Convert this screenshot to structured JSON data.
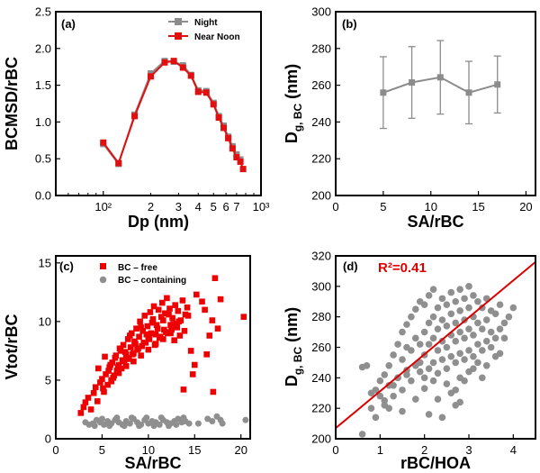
{
  "colors": {
    "night": "#8c8c8c",
    "near_noon": "#e01010",
    "bc_free": "#ee0000",
    "bc_containing": "#8f8f8f",
    "fit_line": "#dd0000",
    "annotation": "#e00000"
  },
  "chart_data": [
    {
      "id": "a",
      "type": "line",
      "panel_label": "(a)",
      "xlabel": "Dp (nm)",
      "ylabel": "BCMSD/rBC",
      "xscale": "log",
      "xlim": [
        50,
        1000
      ],
      "ylim": [
        0,
        2.5
      ],
      "xtick_values": [
        100,
        1000
      ],
      "xtick_labels": [
        "10²",
        "10³"
      ],
      "xtick_minor_labels": [
        {
          "v": 200,
          "t": "2"
        },
        {
          "v": 300,
          "t": "3"
        },
        {
          "v": 400,
          "t": "4"
        },
        {
          "v": 500,
          "t": "5"
        },
        {
          "v": 600,
          "t": "6"
        },
        {
          "v": 700,
          "t": "7"
        }
      ],
      "ytick_values": [
        0,
        0.5,
        1.0,
        1.5,
        2.0,
        2.5
      ],
      "ytick_labels": [
        "0.0",
        "0.5",
        "1.0",
        "1.5",
        "2.0",
        "2.5"
      ],
      "legend": {
        "position": "top-right",
        "entries": [
          "Night",
          "Near Noon"
        ]
      },
      "series": [
        {
          "name": "Night",
          "x": [
            100,
            125,
            158,
            200,
            245,
            280,
            320,
            360,
            400,
            450,
            500,
            540,
            580,
            620,
            660,
            700,
            740
          ],
          "y": [
            0.7,
            0.43,
            1.1,
            1.66,
            1.83,
            1.82,
            1.77,
            1.64,
            1.43,
            1.42,
            1.26,
            1.08,
            0.95,
            0.8,
            0.67,
            0.56,
            0.49
          ]
        },
        {
          "name": "Near Noon",
          "x": [
            100,
            125,
            158,
            200,
            245,
            280,
            320,
            360,
            400,
            450,
            500,
            540,
            580,
            620,
            660,
            700,
            740,
            770
          ],
          "y": [
            0.72,
            0.44,
            1.08,
            1.62,
            1.81,
            1.83,
            1.74,
            1.63,
            1.41,
            1.4,
            1.24,
            1.06,
            0.92,
            0.78,
            0.64,
            0.52,
            0.46,
            0.36
          ]
        }
      ]
    },
    {
      "id": "b",
      "type": "line",
      "panel_label": "(b)",
      "xlabel": "SA/rBC",
      "ylabel": "D",
      "ylabel_sub": "g, BC",
      "ylabel_suffix": " (nm)",
      "xlim": [
        0,
        21
      ],
      "ylim": [
        200,
        300
      ],
      "xtick_values": [
        0,
        5,
        10,
        15,
        20
      ],
      "xtick_labels": [
        "0",
        "5",
        "10",
        "15",
        "20"
      ],
      "ytick_values": [
        200,
        220,
        240,
        260,
        280,
        300
      ],
      "ytick_labels": [
        "200",
        "220",
        "240",
        "260",
        "280",
        "300"
      ],
      "series": [
        {
          "x": [
            5,
            8,
            11,
            14,
            17
          ],
          "y": [
            256,
            261.5,
            264.3,
            256,
            260.4
          ],
          "yerr": [
            19.5,
            19.5,
            20,
            17,
            15.5
          ]
        }
      ]
    },
    {
      "id": "c",
      "type": "scatter",
      "panel_label": "(c)",
      "xlabel": "SA/rBC",
      "ylabel": "Vtot/rBC",
      "xlim": [
        0,
        21
      ],
      "ylim": [
        0,
        15.6
      ],
      "xtick_values": [
        0,
        5,
        10,
        15,
        20
      ],
      "xtick_labels": [
        "0",
        "5",
        "10",
        "15",
        "20"
      ],
      "ytick_values": [
        0,
        5,
        10,
        15
      ],
      "ytick_labels": [
        "0",
        "5",
        "10",
        "15"
      ],
      "legend": {
        "position": "top-left",
        "entries": [
          "BC – free",
          "BC – containing"
        ]
      },
      "series": [
        {
          "name": "BC – free",
          "x": [
            2.7,
            3.0,
            3.2,
            3.5,
            3.8,
            4.1,
            4.3,
            4.5,
            4.8,
            5.0,
            5.2,
            5.4,
            5.6,
            5.8,
            6.0,
            6.1,
            6.3,
            6.5,
            6.6,
            6.8,
            7.0,
            7.1,
            7.3,
            7.4,
            7.6,
            7.8,
            7.9,
            8.1,
            8.2,
            8.4,
            8.5,
            8.7,
            8.8,
            9.0,
            9.1,
            9.3,
            9.4,
            9.6,
            9.7,
            9.9,
            10.0,
            10.2,
            10.3,
            10.5,
            10.6,
            10.8,
            10.9,
            11.1,
            11.2,
            11.4,
            11.5,
            11.7,
            11.8,
            12.0,
            12.1,
            12.3,
            12.4,
            12.6,
            12.8,
            12.9,
            13.1,
            13.2,
            13.4,
            13.5,
            13.7,
            13.9,
            14.0,
            14.2,
            4.6,
            5.3,
            5.9,
            6.4,
            6.9,
            7.5,
            8.0,
            8.6,
            9.2,
            9.8,
            10.4,
            11.0,
            11.6,
            12.2,
            12.7,
            13.3,
            5.1,
            5.7,
            6.2,
            6.7,
            7.2,
            7.7,
            8.3,
            8.9,
            9.5,
            10.1,
            10.7,
            11.3,
            11.9,
            12.5,
            6.0,
            6.8,
            7.6,
            8.4,
            9.2,
            10.0,
            10.8,
            11.6,
            12.4,
            13.0,
            14.3,
            14.6,
            15.2,
            15.8,
            16.1,
            16.6,
            16.9,
            17.2,
            17.5,
            17.8,
            20.3,
            15.0,
            16.3,
            17.0,
            13.8,
            14.8
          ],
          "y": [
            2.2,
            2.7,
            3.1,
            3.5,
            2.5,
            3.9,
            4.4,
            3.2,
            4.8,
            5.1,
            4.0,
            5.5,
            4.6,
            6.1,
            5.0,
            6.5,
            5.4,
            7.1,
            5.8,
            6.3,
            7.5,
            6.0,
            8.0,
            6.6,
            7.2,
            8.5,
            6.8,
            7.8,
            9.0,
            7.3,
            8.3,
            9.4,
            7.6,
            8.7,
            10.0,
            7.9,
            9.2,
            10.5,
            8.2,
            9.6,
            8.6,
            10.8,
            9.0,
            10.2,
            11.3,
            8.9,
            9.7,
            11.0,
            8.6,
            10.4,
            11.6,
            9.3,
            10.7,
            12.0,
            9.0,
            11.1,
            9.7,
            10.3,
            8.4,
            11.4,
            9.5,
            10.9,
            8.8,
            10.1,
            11.8,
            9.2,
            10.6,
            11.2,
            6.0,
            7.0,
            6.3,
            6.9,
            7.7,
            7.4,
            8.8,
            8.1,
            9.5,
            8.9,
            9.9,
            9.4,
            10.1,
            10.6,
            9.8,
            10.0,
            4.3,
            5.8,
            5.2,
            6.1,
            6.7,
            6.9,
            7.2,
            7.7,
            8.2,
            8.5,
            8.0,
            8.7,
            9.1,
            9.3,
            4.9,
            5.6,
            6.2,
            6.6,
            7.1,
            7.6,
            8.1,
            8.5,
            9.0,
            9.8,
            10.5,
            7.5,
            12.3,
            11.7,
            11.0,
            8.8,
            10.1,
            13.7,
            9.4,
            11.9,
            10.4,
            6.3,
            7.2,
            4.0,
            4.2,
            5.5
          ]
        },
        {
          "name": "BC – containing",
          "x": [
            3.2,
            3.6,
            4.0,
            4.4,
            4.8,
            5.2,
            5.6,
            6.0,
            6.4,
            6.8,
            7.2,
            7.6,
            8.0,
            8.4,
            8.8,
            9.2,
            9.6,
            10.0,
            10.4,
            10.8,
            11.2,
            11.6,
            12.0,
            12.4,
            12.8,
            13.2,
            13.6,
            14.0,
            14.4,
            4.2,
            5.0,
            5.8,
            6.6,
            7.4,
            8.2,
            9.0,
            9.8,
            10.6,
            11.4,
            12.2,
            13.0,
            13.8,
            15.4,
            16.4,
            16.9,
            17.4,
            17.8,
            18.0,
            20.5
          ],
          "y": [
            1.4,
            1.2,
            1.3,
            1.6,
            1.4,
            1.2,
            1.5,
            1.3,
            1.6,
            1.4,
            1.2,
            1.5,
            1.3,
            1.7,
            1.4,
            1.2,
            1.6,
            1.3,
            1.5,
            1.4,
            1.2,
            1.6,
            1.4,
            1.3,
            1.5,
            1.7,
            1.4,
            1.5,
            1.3,
            1.1,
            1.7,
            1.1,
            1.8,
            1.1,
            1.8,
            1.1,
            1.8,
            1.1,
            1.8,
            1.1,
            1.2,
            1.8,
            1.3,
            1.7,
            1.5,
            1.9,
            1.6,
            1.3,
            1.6
          ]
        }
      ]
    },
    {
      "id": "d",
      "type": "scatter",
      "panel_label": "(d)",
      "xlabel": "rBC/HOA",
      "ylabel": "D",
      "ylabel_sub": "g, BC",
      "ylabel_suffix": " (nm)",
      "annotation": "R²=0.41",
      "xlim": [
        0,
        4.5
      ],
      "ylim": [
        200,
        320
      ],
      "xtick_values": [
        0,
        1,
        2,
        3,
        4
      ],
      "xtick_labels": [
        "0",
        "1",
        "2",
        "3",
        "4"
      ],
      "ytick_values": [
        200,
        220,
        240,
        260,
        280,
        300,
        320
      ],
      "ytick_labels": [
        "200",
        "220",
        "240",
        "260",
        "280",
        "300",
        "320"
      ],
      "fit_line": {
        "x": [
          0,
          4.5
        ],
        "y": [
          207,
          316
        ]
      },
      "series": [
        {
          "name": "points",
          "x": [
            0.6,
            0.7,
            0.8,
            0.9,
            1.0,
            1.0,
            1.1,
            1.1,
            1.2,
            1.2,
            1.3,
            1.3,
            1.4,
            1.4,
            1.5,
            1.5,
            1.5,
            1.6,
            1.6,
            1.6,
            1.7,
            1.7,
            1.7,
            1.8,
            1.8,
            1.8,
            1.9,
            1.9,
            1.9,
            2.0,
            2.0,
            2.0,
            2.0,
            2.1,
            2.1,
            2.1,
            2.1,
            2.2,
            2.2,
            2.2,
            2.2,
            2.3,
            2.3,
            2.3,
            2.3,
            2.4,
            2.4,
            2.4,
            2.4,
            2.5,
            2.5,
            2.5,
            2.5,
            2.6,
            2.6,
            2.6,
            2.6,
            2.7,
            2.7,
            2.7,
            2.7,
            2.8,
            2.8,
            2.8,
            2.8,
            2.9,
            2.9,
            2.9,
            2.9,
            3.0,
            3.0,
            3.0,
            3.0,
            3.1,
            3.1,
            3.1,
            3.1,
            3.2,
            3.2,
            3.2,
            3.3,
            3.3,
            3.3,
            3.4,
            3.4,
            3.4,
            3.5,
            3.5,
            3.6,
            3.6,
            3.7,
            3.7,
            3.8,
            3.9,
            4.0,
            0.6,
            0.8,
            1.1,
            1.3,
            1.6,
            1.9,
            2.2,
            2.5,
            2.8,
            3.1,
            3.4,
            3.7,
            2.3,
            2.7,
            3.0,
            3.3,
            3.6,
            2.1,
            2.6,
            2.9,
            3.2,
            1.8,
            2.4,
            2.7,
            3.5,
            1.5,
            1.2,
            2.0,
            2.8,
            3.8,
            0.9,
            1.4
          ],
          "y": [
            247,
            248,
            230,
            232,
            228,
            238,
            222,
            242,
            235,
            248,
            228,
            255,
            240,
            262,
            232,
            252,
            270,
            245,
            260,
            275,
            238,
            258,
            280,
            248,
            266,
            285,
            244,
            262,
            290,
            240,
            255,
            270,
            288,
            246,
            262,
            276,
            294,
            250,
            266,
            280,
            298,
            243,
            258,
            272,
            286,
            252,
            264,
            278,
            292,
            246,
            260,
            274,
            288,
            254,
            268,
            282,
            296,
            250,
            264,
            276,
            290,
            256,
            270,
            284,
            298,
            252,
            266,
            278,
            292,
            258,
            272,
            286,
            300,
            254,
            268,
            280,
            294,
            262,
            276,
            290,
            258,
            272,
            286,
            264,
            278,
            292,
            270,
            284,
            266,
            282,
            272,
            288,
            276,
            280,
            286,
            203,
            220,
            225,
            235,
            242,
            250,
            238,
            236,
            240,
            246,
            248,
            256,
            226,
            232,
            244,
            240,
            254,
            216,
            230,
            238,
            250,
            226,
            214,
            222,
            260,
            218,
            220,
            233,
            224,
            266,
            214,
            240
          ]
        }
      ]
    }
  ]
}
